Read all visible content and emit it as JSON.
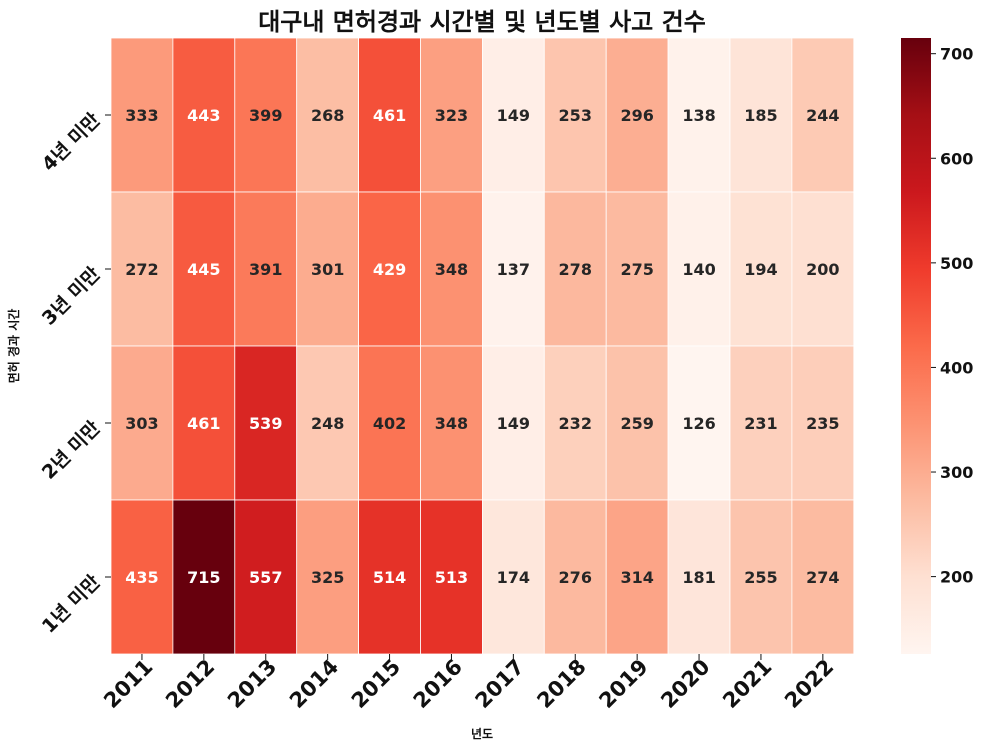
{
  "chart_data": {
    "type": "heatmap",
    "title": "대구내 면허경과 시간별 및 년도별 사고 건수",
    "xlabel": "년도",
    "ylabel": "면허 경과 시간",
    "x_categories": [
      "2011",
      "2012",
      "2013",
      "2014",
      "2015",
      "2016",
      "2017",
      "2018",
      "2019",
      "2020",
      "2021",
      "2022"
    ],
    "y_categories": [
      "4년 미만",
      "3년 미만",
      "2년 미만",
      "1년 미만"
    ],
    "values": [
      [
        333,
        443,
        399,
        268,
        461,
        323,
        149,
        253,
        296,
        138,
        185,
        244
      ],
      [
        272,
        445,
        391,
        301,
        429,
        348,
        137,
        278,
        275,
        140,
        194,
        200
      ],
      [
        303,
        461,
        539,
        248,
        402,
        348,
        149,
        232,
        259,
        126,
        231,
        235
      ],
      [
        435,
        715,
        557,
        325,
        514,
        513,
        174,
        276,
        314,
        181,
        255,
        274
      ]
    ],
    "colormap": "Reds",
    "colorbar": {
      "range": [
        126,
        715
      ],
      "ticks": [
        200,
        300,
        400,
        500,
        600,
        700
      ]
    },
    "annotations": "cell values shown",
    "grid": false
  }
}
